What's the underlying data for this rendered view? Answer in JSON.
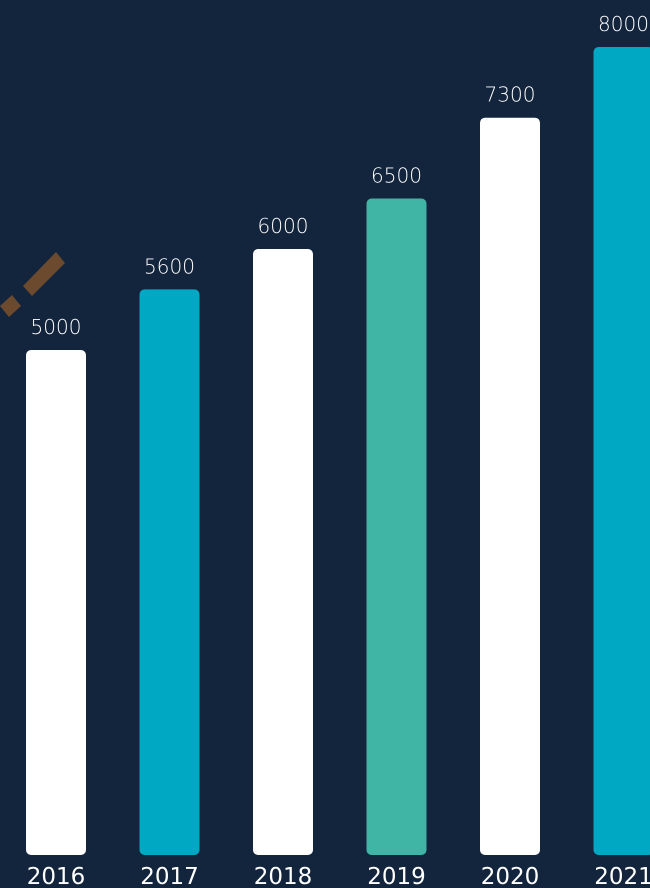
{
  "chart_data": {
    "type": "bar",
    "categories": [
      "2016",
      "2017",
      "2018",
      "2019",
      "2020",
      "2021"
    ],
    "values": [
      5000,
      5600,
      6000,
      6500,
      7300,
      8000
    ],
    "value_labels": [
      "5000",
      "5600",
      "6000",
      "6500",
      "7300",
      "8000"
    ],
    "bar_colors": [
      "#ffffff",
      "#00a8c3",
      "#ffffff",
      "#40b5a6",
      "#ffffff",
      "#00a8c3"
    ],
    "background": "#13243d",
    "title": "",
    "xlabel": "",
    "ylabel": "",
    "ylim": [
      0,
      8000
    ],
    "grid": false,
    "legend": "none"
  },
  "decoration": {
    "icon": "brown-brush-stroke-icon",
    "color": "#6b4a2e"
  }
}
